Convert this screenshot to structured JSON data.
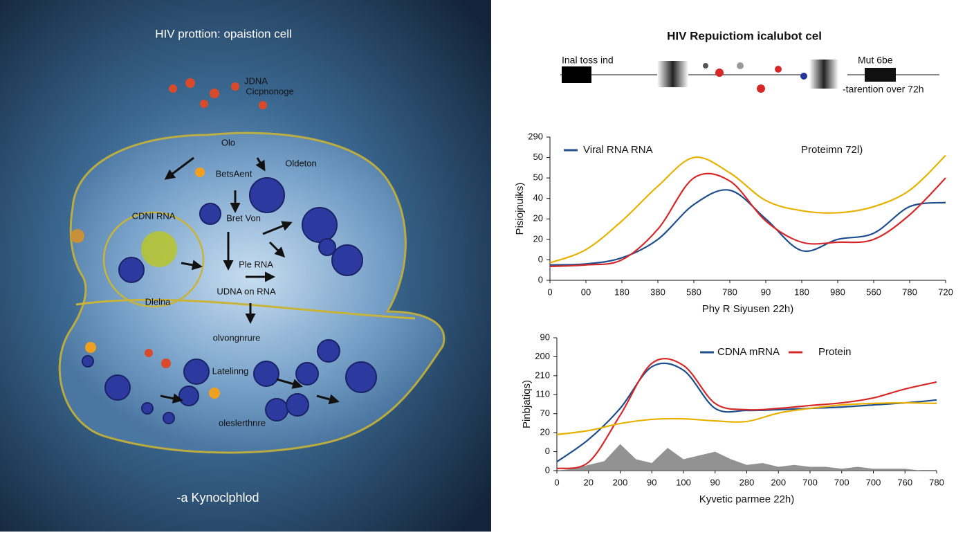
{
  "illustration": {
    "title": "HIV prottion:  opaistion cell",
    "labels": [
      "JDNA",
      "Cicpnonoge",
      "Olo",
      "BetsAent",
      "Oldeton",
      "CDNI RNA",
      "Bret Von",
      "Ple RNA",
      "UDNA on RNA",
      "Dlelna",
      "olvongnrure",
      "Latelinng",
      "oleslerthnre"
    ],
    "caption": "-a Kynoclphlod"
  },
  "header": {
    "title": "HIV Repuictiom icalubot cel",
    "left_label": "Inal toss ind",
    "right_label": "Mut 6be",
    "note": "-tarention over 72h"
  },
  "chart_data": [
    {
      "type": "line",
      "x_label": "Phy R Siyusen 22h)",
      "y_label": "Pisiojnuiks)",
      "x": [
        0,
        100,
        200,
        300,
        400,
        500,
        600,
        700,
        800,
        900,
        1000,
        1100
      ],
      "xlim": [
        0,
        1100
      ],
      "xticks": [
        0,
        {
          "value": 100,
          "label": "00"
        },
        {
          "value": 200,
          "label": "180"
        },
        {
          "value": 300,
          "label": "380"
        },
        {
          "value": 400,
          "label": "580"
        },
        {
          "value": 500,
          "label": "780"
        },
        {
          "value": 600,
          "label": "90"
        },
        {
          "value": 700,
          "label": "180"
        },
        {
          "value": 800,
          "label": "980"
        },
        {
          "value": 900,
          "label": "560"
        },
        {
          "value": 1000,
          "label": "780"
        },
        {
          "value": 1100,
          "label": "720"
        }
      ],
      "ylim": [
        0,
        70
      ],
      "yticks": [
        0,
        {
          "value": 10,
          "label": "0"
        },
        20,
        {
          "value": 30,
          "label": "20"
        },
        40,
        {
          "value": 50,
          "label": "50"
        },
        {
          "value": 60,
          "label": "50"
        },
        {
          "value": 70,
          "label": "290"
        }
      ],
      "series": [
        {
          "name": "Viral RNA  RNA",
          "color": "#1f4e8c",
          "values": [
            7.5,
            8,
            11,
            20,
            37,
            44,
            30,
            14.5,
            20,
            23,
            36,
            38
          ]
        },
        {
          "name": "Proteimn 72l)",
          "color": "#d62828",
          "values": [
            6.8,
            7.5,
            10,
            25,
            50,
            48.5,
            29,
            18.6,
            18.6,
            20,
            32,
            50
          ]
        },
        {
          "color": "#e8b100",
          "values": [
            8.5,
            15,
            29,
            46,
            60,
            52.5,
            39,
            34,
            33,
            36,
            44,
            61
          ]
        }
      ]
    },
    {
      "type": "line",
      "x_label": "Kyvetic parmee 22h)",
      "y_label": "Pinbjatiqs)",
      "x": [
        0,
        100,
        200,
        300,
        400,
        500,
        600,
        700,
        800,
        900,
        1000,
        1100,
        1200
      ],
      "xlim": [
        0,
        1200
      ],
      "xticks": [
        0,
        {
          "value": 100,
          "label": "20"
        },
        200,
        {
          "value": 300,
          "label": "90"
        },
        {
          "value": 400,
          "label": "100"
        },
        {
          "value": 500,
          "label": "90"
        },
        {
          "value": 600,
          "label": "280"
        },
        {
          "value": 700,
          "label": "200"
        },
        {
          "value": 800,
          "label": "700"
        },
        {
          "value": 900,
          "label": "700"
        },
        {
          "value": 1000,
          "label": "700"
        },
        {
          "value": 1100,
          "label": "760"
        },
        {
          "value": 1200,
          "label": "780"
        }
      ],
      "ylim": [
        0,
        70
      ],
      "yticks": [
        0,
        {
          "value": 10,
          "label": "0"
        },
        20,
        {
          "value": 30,
          "label": "70"
        },
        {
          "value": 40,
          "label": "110"
        },
        {
          "value": 50,
          "label": "210"
        },
        {
          "value": 60,
          "label": "200"
        },
        {
          "value": 70,
          "label": "90"
        }
      ],
      "series": [
        {
          "name": "CDNA  mRNA",
          "color": "#1f4e8c",
          "values": [
            4.7,
            16.4,
            32.8,
            54.7,
            52.9,
            32.8,
            31.7,
            32.1,
            32.8,
            33.5,
            34.6,
            35.7,
            37.2
          ]
        },
        {
          "name": "Protein",
          "color": "#d62828",
          "values": [
            1.1,
            4.4,
            29.2,
            56.5,
            55.4,
            35.4,
            32.1,
            32.8,
            34.3,
            35.7,
            38.3,
            43,
            46.7
          ]
        },
        {
          "color": "#e8b100",
          "values": [
            19,
            21.1,
            24.8,
            27,
            27.3,
            26.2,
            25.9,
            30.3,
            32.8,
            34.6,
            35.4,
            35.7,
            35.4
          ]
        }
      ],
      "area": {
        "color": "#777777",
        "x": [
          0,
          50,
          100,
          150,
          200,
          250,
          300,
          350,
          400,
          450,
          500,
          550,
          600,
          650,
          700,
          750,
          800,
          850,
          900,
          950,
          1000,
          1050,
          1100,
          1150,
          1200
        ],
        "values": [
          0,
          1,
          3,
          5,
          14,
          6,
          4,
          12,
          6,
          8,
          10,
          6,
          3,
          4,
          2,
          3,
          2,
          2,
          1,
          2,
          1,
          1,
          1,
          0,
          0
        ]
      }
    }
  ]
}
